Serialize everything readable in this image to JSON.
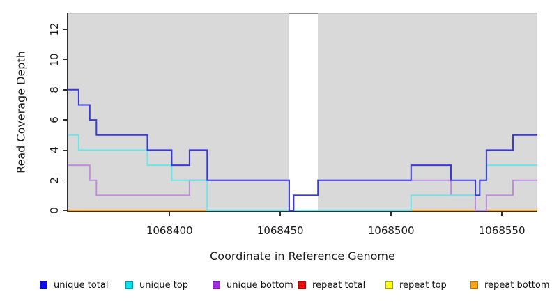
{
  "chart_data": {
    "type": "line",
    "style": "step",
    "xlabel": "Coordinate in Reference Genome",
    "ylabel": "Read Coverage Depth",
    "xlim": [
      1068354,
      1068566
    ],
    "ylim": [
      0,
      13.1
    ],
    "x_ticks": [
      "1068400",
      "1068450",
      "1068500",
      "1068550"
    ],
    "x_tick_values": [
      1068400,
      1068450,
      1068500,
      1068550
    ],
    "y_ticks": [
      "0",
      "2",
      "4",
      "6",
      "8",
      "10",
      "12"
    ],
    "y_tick_values": [
      0,
      2,
      4,
      6,
      8,
      10,
      12
    ],
    "plot_background": "#d9d9d9",
    "grid": false,
    "masked_region": {
      "from": 1068454,
      "to": 1068467,
      "color": "#ffffff",
      "top_edge_color": "#8e8e8e"
    },
    "series": [
      {
        "name": "repeat total",
        "line_color": "#d42222",
        "points": [
          [
            1068354,
            0
          ]
        ]
      },
      {
        "name": "repeat top",
        "line_color": "#f0f000",
        "points": [
          [
            1068354,
            0
          ]
        ]
      },
      {
        "name": "repeat bottom",
        "line_color": "#ffa41c",
        "points": [
          [
            1068354,
            0
          ]
        ]
      },
      {
        "name": "unique bottom",
        "line_color": "#c08ddd",
        "points": [
          [
            1068354,
            3
          ],
          [
            1068364,
            2
          ],
          [
            1068367,
            1
          ],
          [
            1068409,
            2
          ],
          [
            1068454,
            0
          ],
          [
            1068456,
            1
          ],
          [
            1068467,
            2
          ],
          [
            1068527,
            1
          ],
          [
            1068538,
            0
          ],
          [
            1068543,
            1
          ],
          [
            1068555,
            2
          ]
        ]
      },
      {
        "name": "unique top",
        "line_color": "#6ee4e8",
        "points": [
          [
            1068354,
            5
          ],
          [
            1068359,
            4
          ],
          [
            1068390,
            3
          ],
          [
            1068401,
            2
          ],
          [
            1068417,
            0
          ],
          [
            1068509,
            1
          ],
          [
            1068540,
            2
          ],
          [
            1068543,
            3
          ]
        ]
      },
      {
        "name": "unique total",
        "line_color": "#3939dc",
        "points": [
          [
            1068354,
            8
          ],
          [
            1068359,
            7
          ],
          [
            1068364,
            6
          ],
          [
            1068367,
            5
          ],
          [
            1068390,
            4
          ],
          [
            1068401,
            3
          ],
          [
            1068409,
            4
          ],
          [
            1068417,
            2
          ],
          [
            1068454,
            0
          ],
          [
            1068456,
            1
          ],
          [
            1068467,
            2
          ],
          [
            1068509,
            3
          ],
          [
            1068527,
            2
          ],
          [
            1068538,
            1
          ],
          [
            1068540,
            2
          ],
          [
            1068543,
            4
          ],
          [
            1068555,
            5
          ]
        ]
      }
    ],
    "zero_line_blend_segment": {
      "from": 1068417,
      "to": 1068509,
      "value": 0,
      "color": "#8cc98c"
    }
  },
  "legend": {
    "items": [
      {
        "label": "unique total",
        "fill": "#0d0df2",
        "border": "#0909b0"
      },
      {
        "label": "unique top",
        "fill": "#00e6f2",
        "border": "#079daa"
      },
      {
        "label": "unique bottom",
        "fill": "#a02ddd",
        "border": "#731fa3"
      },
      {
        "label": "repeat total",
        "fill": "#f00c0c",
        "border": "#a80808"
      },
      {
        "label": "repeat top",
        "fill": "#fdfd13",
        "border": "#a8a008"
      },
      {
        "label": "repeat bottom",
        "fill": "#ffa513",
        "border": "#b97807"
      }
    ]
  }
}
